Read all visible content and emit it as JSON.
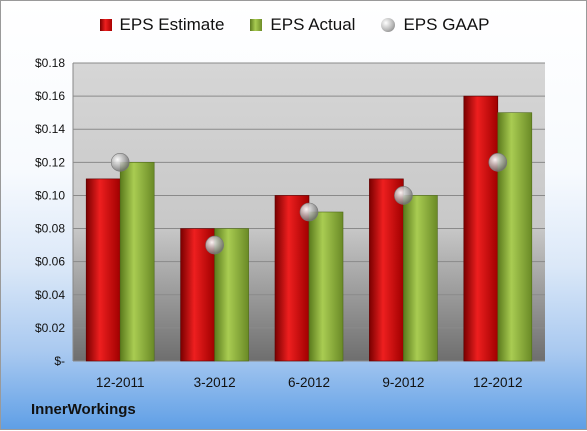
{
  "chart_data": {
    "type": "bar",
    "title": "",
    "xlabel": "",
    "ylabel": "",
    "categories": [
      "12-2011",
      "3-2012",
      "6-2012",
      "9-2012",
      "12-2012"
    ],
    "series": [
      {
        "name": "EPS Estimate",
        "values": [
          0.11,
          0.08,
          0.1,
          0.11,
          0.16
        ],
        "color": "#cc1111",
        "mark": "bar"
      },
      {
        "name": "EPS Actual",
        "values": [
          0.12,
          0.08,
          0.09,
          0.1,
          0.15
        ],
        "color": "#8fb043",
        "mark": "bar"
      },
      {
        "name": "EPS GAAP",
        "values": [
          0.12,
          0.07,
          0.09,
          0.1,
          0.12
        ],
        "color": "#a0a0a0",
        "mark": "marker"
      }
    ],
    "ylim": [
      0,
      0.18
    ],
    "yticks": [
      0,
      0.02,
      0.04,
      0.06,
      0.08,
      0.1,
      0.12,
      0.14,
      0.16,
      0.18
    ],
    "ytick_labels": [
      "$-",
      "$0.02",
      "$0.04",
      "$0.06",
      "$0.08",
      "$0.10",
      "$0.12",
      "$0.14",
      "$0.16",
      "$0.18"
    ],
    "grid": true,
    "legend_position": "top"
  },
  "legend": {
    "estimate": "EPS Estimate",
    "actual": "EPS Actual",
    "gaap": "EPS GAAP"
  },
  "brand": "InnerWorkings"
}
